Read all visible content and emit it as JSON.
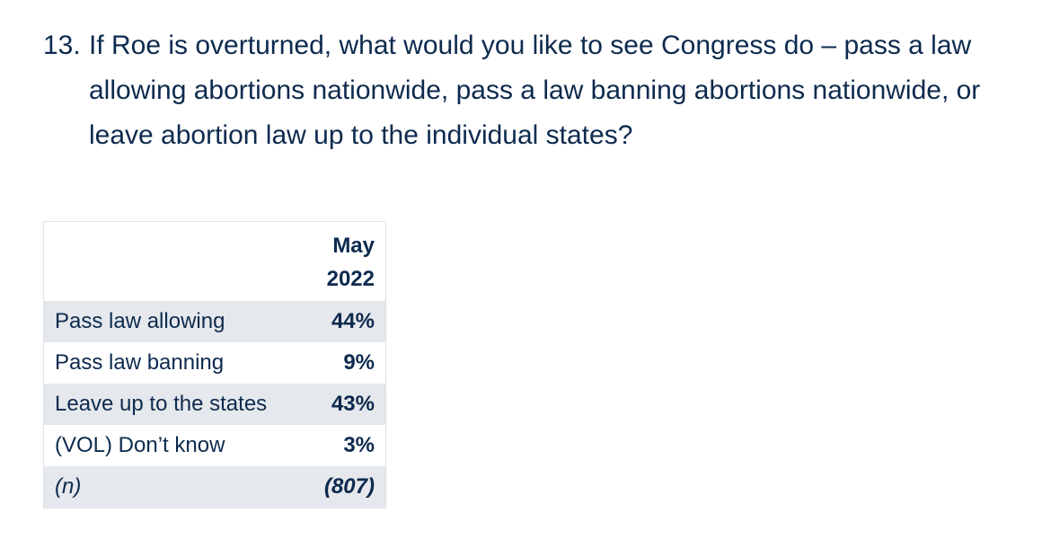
{
  "question": {
    "number": "13.",
    "text": "If Roe is overturned, what would you like to see Congress do – pass a law allowing abortions nationwide, pass a law banning abortions nationwide, or leave abortion law up to the individual states?"
  },
  "table": {
    "header": {
      "line1": "May",
      "line2": "2022"
    },
    "rows": [
      {
        "label": "Pass law allowing",
        "value": "44%"
      },
      {
        "label": "Pass law banning",
        "value": "9%"
      },
      {
        "label": "Leave up to the states",
        "value": "43%"
      },
      {
        "label": "(VOL) Don’t know",
        "value": "3%"
      },
      {
        "label": "(n)",
        "value": "(807)"
      }
    ]
  },
  "colors": {
    "text": "#0d2a4e",
    "row_shade": "#e5e8ec",
    "border": "#dfe3e8"
  }
}
